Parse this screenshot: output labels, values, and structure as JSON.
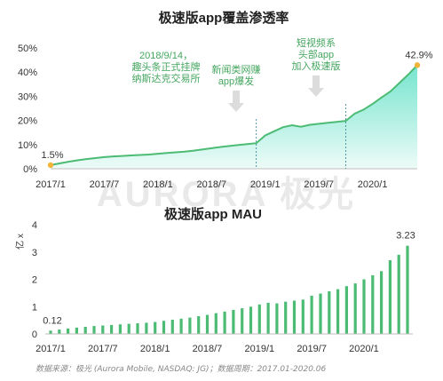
{
  "watermark": {
    "text": "AURORA 极光"
  },
  "footer": "数据来源：极光 (Aurora Mobile, NASDAQ: JG)；数据周期：2017.01-2020.06",
  "colors": {
    "green": "#4cbb74",
    "fill_top": "#5ee0c6",
    "fill_bottom": "#ecfbf7",
    "bar": "#4cbb74",
    "marker": "#f3b43a",
    "annotation": "#44a65f",
    "arrow": "#d3d3d3",
    "axis_text": "#333333"
  },
  "chart_data": [
    {
      "type": "area",
      "title": "极速版app覆盖渗透率",
      "y_ticks": [
        "0%",
        "10%",
        "20%",
        "30%",
        "40%",
        "50%"
      ],
      "ylim": [
        0,
        50
      ],
      "x_ticks": [
        "2017/1",
        "2017/7",
        "2018/1",
        "2018/7",
        "2019/1",
        "2019/7",
        "2020/1"
      ],
      "x": [
        "2017/1",
        "2017/2",
        "2017/3",
        "2017/4",
        "2017/5",
        "2017/6",
        "2017/7",
        "2017/8",
        "2017/9",
        "2017/10",
        "2017/11",
        "2017/12",
        "2018/1",
        "2018/2",
        "2018/3",
        "2018/4",
        "2018/5",
        "2018/6",
        "2018/7",
        "2018/8",
        "2018/9",
        "2018/10",
        "2018/11",
        "2018/12",
        "2019/1",
        "2019/2",
        "2019/3",
        "2019/4",
        "2019/5",
        "2019/6",
        "2019/7",
        "2019/8",
        "2019/9",
        "2019/10",
        "2019/11",
        "2019/12",
        "2020/1",
        "2020/2",
        "2020/3",
        "2020/4",
        "2020/5",
        "2020/6"
      ],
      "values": [
        1.5,
        2.2,
        2.9,
        3.5,
        4.0,
        4.4,
        4.8,
        5.1,
        5.3,
        5.5,
        5.7,
        5.9,
        6.2,
        6.5,
        6.8,
        7.1,
        7.5,
        8.0,
        8.5,
        9.0,
        9.4,
        9.8,
        10.2,
        10.6,
        13.8,
        15.5,
        17.2,
        18.0,
        17.4,
        18.2,
        18.6,
        19.0,
        19.4,
        19.8,
        22.8,
        24.5,
        26.8,
        29.5,
        32.0,
        35.5,
        39.0,
        42.9
      ],
      "data_labels": [
        {
          "index": 0,
          "text": "1.5%"
        },
        {
          "index": 41,
          "text": "42.9%"
        }
      ],
      "annotations": [
        {
          "index": 20,
          "lines": [
            "2018/9/14，",
            "趣头条正式挂牌",
            "纳斯达克交易所"
          ]
        },
        {
          "index": 23,
          "lines": [
            "新闻类网赚",
            "app爆发"
          ]
        },
        {
          "index": 33,
          "lines": [
            "短视频系",
            "头部app",
            "加入极速版"
          ]
        }
      ]
    },
    {
      "type": "bar",
      "title": "极速版app MAU",
      "unit_label": "亿 x",
      "y_ticks": [
        "0",
        "1",
        "2",
        "3",
        "4"
      ],
      "ylim": [
        0,
        4
      ],
      "x_ticks": [
        "2017/1",
        "2017/7",
        "2018/1",
        "2018/7",
        "2019/1",
        "2019/7",
        "2020/1"
      ],
      "x": [
        "2017/1",
        "2017/2",
        "2017/3",
        "2017/4",
        "2017/5",
        "2017/6",
        "2017/7",
        "2017/8",
        "2017/9",
        "2017/10",
        "2017/11",
        "2017/12",
        "2018/1",
        "2018/2",
        "2018/3",
        "2018/4",
        "2018/5",
        "2018/6",
        "2018/7",
        "2018/8",
        "2018/9",
        "2018/10",
        "2018/11",
        "2018/12",
        "2019/1",
        "2019/2",
        "2019/3",
        "2019/4",
        "2019/5",
        "2019/6",
        "2019/7",
        "2019/8",
        "2019/9",
        "2019/10",
        "2019/11",
        "2019/12",
        "2020/1",
        "2020/2",
        "2020/3",
        "2020/4",
        "2020/5",
        "2020/6"
      ],
      "values": [
        0.12,
        0.16,
        0.2,
        0.23,
        0.26,
        0.29,
        0.31,
        0.33,
        0.35,
        0.37,
        0.39,
        0.41,
        0.44,
        0.48,
        0.52,
        0.56,
        0.6,
        0.65,
        0.7,
        0.76,
        0.82,
        0.88,
        0.94,
        1.0,
        1.08,
        1.14,
        1.12,
        1.18,
        1.22,
        1.26,
        1.4,
        1.48,
        1.56,
        1.64,
        1.75,
        1.85,
        2.0,
        2.15,
        2.3,
        2.7,
        2.9,
        3.23
      ],
      "data_labels": [
        {
          "index": 0,
          "text": "0.12"
        },
        {
          "index": 41,
          "text": "3.23"
        }
      ]
    }
  ]
}
